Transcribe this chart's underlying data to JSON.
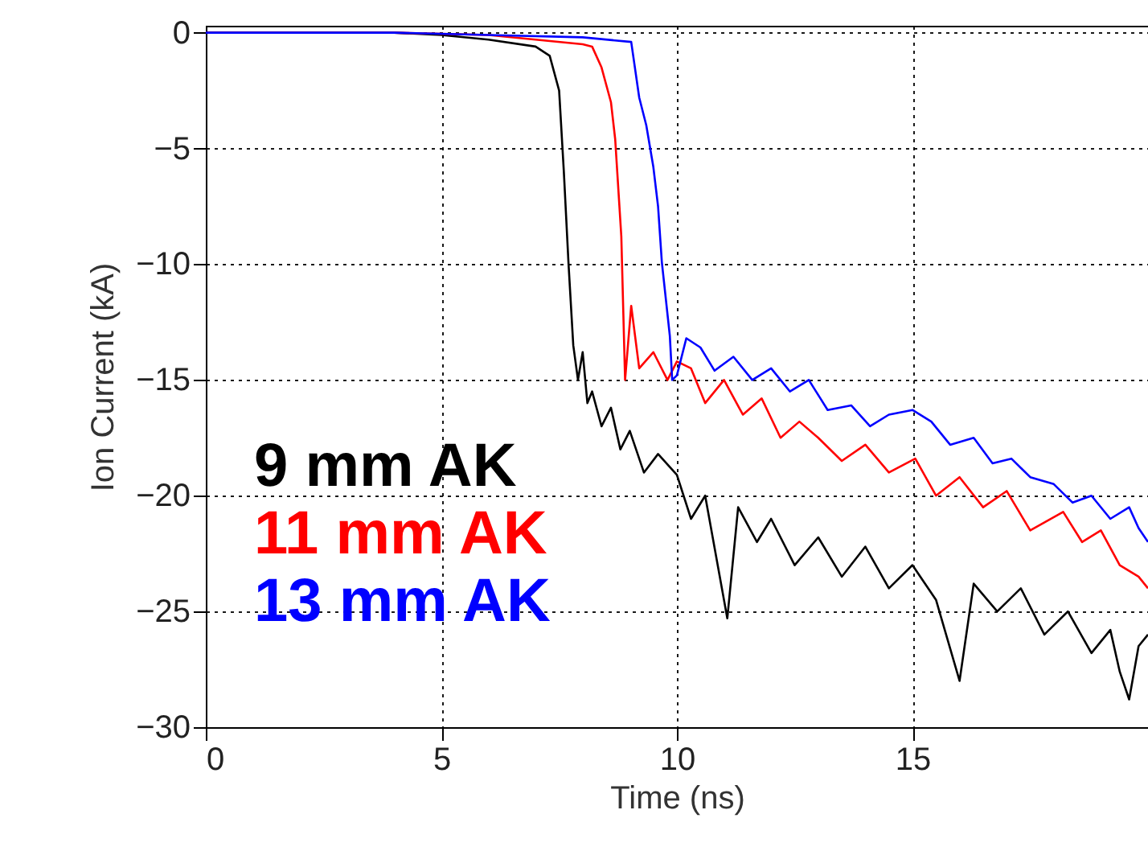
{
  "chart_data": {
    "type": "line",
    "xlabel": "Time (ns)",
    "ylabel": "Ion Current (kA)",
    "xlim": [
      0,
      20
    ],
    "ylim": [
      -30,
      0.3
    ],
    "xticks": [
      0,
      5,
      10,
      15
    ],
    "yticks": [
      0,
      -5,
      -10,
      -15,
      -20,
      -25,
      -30
    ],
    "grid": true,
    "line_style": "solid",
    "marker": "none",
    "series": [
      {
        "name": "9 mm AK",
        "color": "#000000",
        "x": [
          0,
          2,
          4,
          5,
          6,
          7,
          7.3,
          7.5,
          7.6,
          7.7,
          7.8,
          7.9,
          8.0,
          8.1,
          8.2,
          8.4,
          8.6,
          8.8,
          9.0,
          9.3,
          9.6,
          10.0,
          10.3,
          10.6,
          11.07,
          11.3,
          11.7,
          12.0,
          12.5,
          13.0,
          13.5,
          14.0,
          14.5,
          15.0,
          15.5,
          16.0,
          16.3,
          16.8,
          17.3,
          17.8,
          18.3,
          18.8,
          19.2,
          19.4,
          19.6,
          19.8,
          20.0
        ],
        "values": [
          0,
          0,
          0,
          -0.1,
          -0.3,
          -0.6,
          -1.0,
          -2.5,
          -6,
          -10,
          -13.5,
          -15,
          -13.8,
          -16,
          -15.5,
          -17,
          -16.2,
          -18,
          -17.2,
          -19,
          -18.2,
          -19.1,
          -21,
          -20,
          -25.3,
          -20.5,
          -22,
          -21,
          -23,
          -21.8,
          -23.5,
          -22.2,
          -24,
          -23,
          -24.5,
          -28,
          -23.8,
          -25,
          -24,
          -26,
          -25,
          -26.8,
          -25.8,
          -27.6,
          -28.8,
          -26.5,
          -26
        ]
      },
      {
        "name": "11 mm AK",
        "color": "#ff0000",
        "x": [
          0,
          4,
          6,
          7,
          8.0,
          8.2,
          8.4,
          8.6,
          8.69,
          8.82,
          8.9,
          9.03,
          9.2,
          9.5,
          9.8,
          10.0,
          10.3,
          10.6,
          11.0,
          11.4,
          11.8,
          12.2,
          12.6,
          13.0,
          13.5,
          14.0,
          14.5,
          15.06,
          15.5,
          16.0,
          16.5,
          17.0,
          17.5,
          18.2,
          18.6,
          19.0,
          19.4,
          19.8,
          20.0
        ],
        "values": [
          0,
          0,
          -0.1,
          -0.3,
          -0.5,
          -0.6,
          -1.5,
          -3,
          -4.6,
          -8.8,
          -15,
          -11.8,
          -14.5,
          -13.8,
          -15,
          -14.2,
          -14.5,
          -16,
          -15,
          -16.5,
          -15.8,
          -17.5,
          -16.8,
          -17.5,
          -18.5,
          -17.8,
          -19,
          -18.4,
          -20,
          -19.2,
          -20.5,
          -19.8,
          -21.5,
          -20.7,
          -22,
          -21.5,
          -23,
          -23.5,
          -24
        ]
      },
      {
        "name": "13 mm AK",
        "color": "#0000ff",
        "x": [
          0,
          4,
          6,
          8,
          9.03,
          9.2,
          9.35,
          9.5,
          9.6,
          9.68,
          9.85,
          9.9,
          10.0,
          10.2,
          10.5,
          10.8,
          11.2,
          11.6,
          12.0,
          12.4,
          12.8,
          13.2,
          13.7,
          14.1,
          14.5,
          15.0,
          15.4,
          15.8,
          16.3,
          16.7,
          17.1,
          17.5,
          18.0,
          18.4,
          18.8,
          19.2,
          19.6,
          19.8,
          20.0
        ],
        "values": [
          0,
          0,
          -0.1,
          -0.2,
          -0.4,
          -2.8,
          -4,
          -5.8,
          -7.5,
          -9.9,
          -13.1,
          -15,
          -14.8,
          -13.2,
          -13.6,
          -14.6,
          -14,
          -15,
          -14.5,
          -15.5,
          -15,
          -16.3,
          -16.1,
          -17,
          -16.5,
          -16.3,
          -16.8,
          -17.8,
          -17.5,
          -18.6,
          -18.4,
          -19.2,
          -19.5,
          -20.3,
          -20,
          -21,
          -20.5,
          -21.4,
          -22
        ]
      }
    ]
  }
}
